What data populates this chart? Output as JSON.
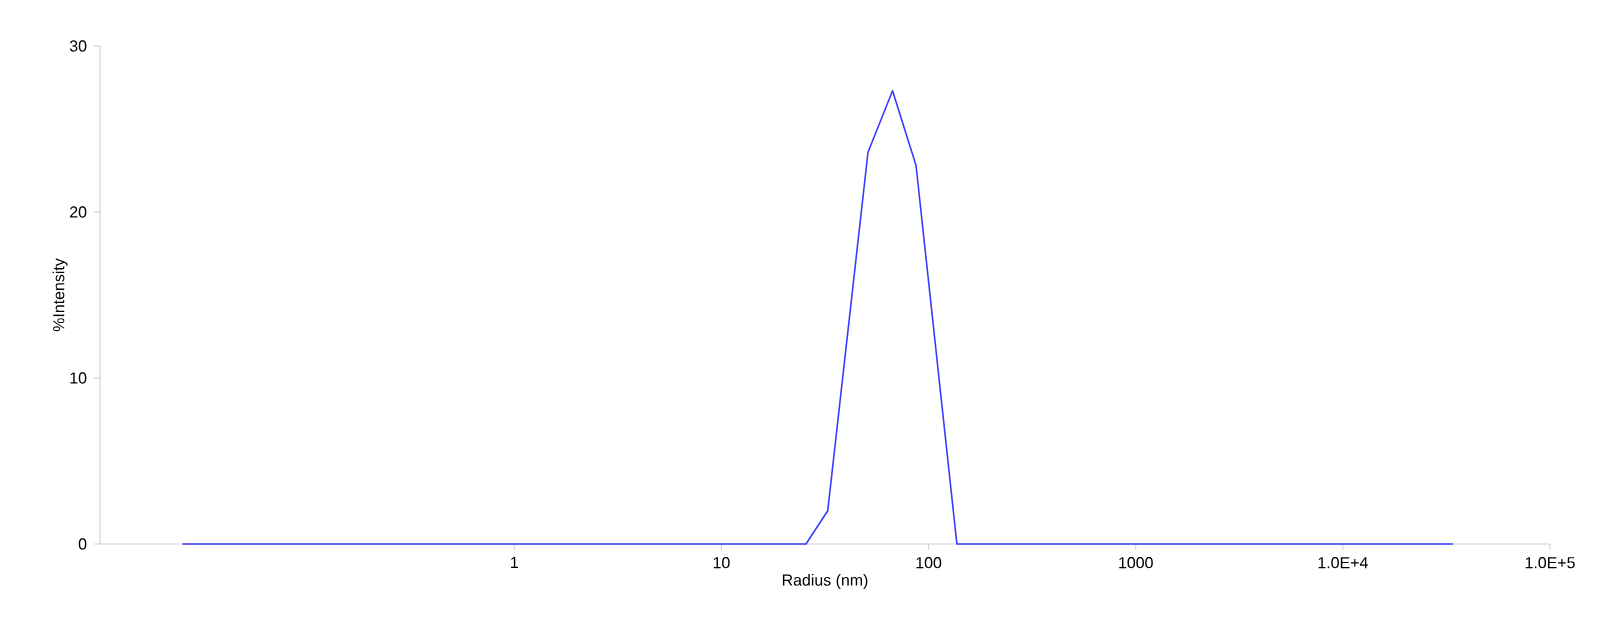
{
  "chart_data": {
    "type": "line",
    "xlabel": "Radius (nm)",
    "ylabel": "%Intensity",
    "log": "x",
    "xlim": [
      0.01,
      100000
    ],
    "ylim": [
      0,
      30
    ],
    "xticks": [
      1,
      10,
      100,
      1000,
      {
        "value": 10000,
        "label": "1.0E+4"
      },
      {
        "value": 100000,
        "label": "1.0E+5"
      }
    ],
    "yticks": [
      0,
      10,
      20,
      30
    ],
    "x": [
      0.025,
      0.1,
      1,
      10,
      25.6,
      32.6,
      51,
      67,
      87,
      137,
      1000,
      10000,
      34000
    ],
    "series": [
      {
        "color": "#3a3aff",
        "values": [
          0,
          0,
          0,
          0,
          0,
          2,
          23.6,
          27.3,
          22.8,
          0,
          0,
          0,
          0
        ]
      }
    ]
  }
}
